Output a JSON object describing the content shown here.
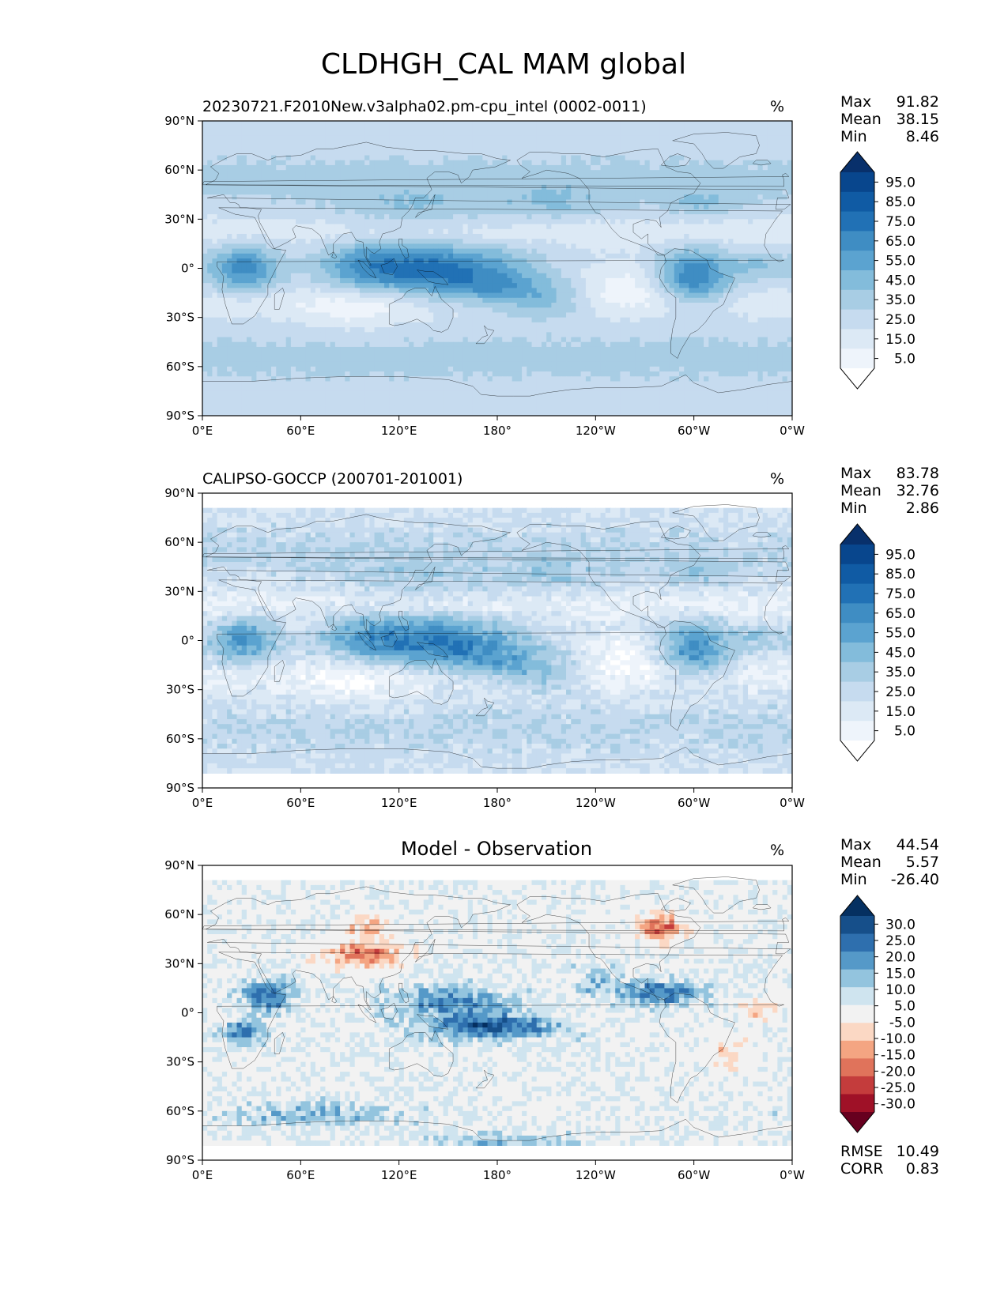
{
  "figure_title": "CLDHGH_CAL MAM global",
  "chart_data": [
    {
      "type": "heatmap",
      "title": "20230721.F2010New.v3alpha02.pm-cpu_intel (0002-0011)",
      "units": "%",
      "x_ticks": [
        "0°E",
        "60°E",
        "120°E",
        "180°",
        "120°W",
        "60°W",
        "0°W"
      ],
      "y_ticks": [
        "90°N",
        "60°N",
        "30°N",
        "0°",
        "30°S",
        "60°S",
        "90°S"
      ],
      "xlim": [
        0,
        360
      ],
      "ylim": [
        -90,
        90
      ],
      "stats": [
        {
          "label": "Max",
          "value": "91.82"
        },
        {
          "label": "Mean",
          "value": "38.15"
        },
        {
          "label": "Min",
          "value": "8.46"
        }
      ],
      "colorbar": {
        "labels": [
          "95.0",
          "85.0",
          "75.0",
          "65.0",
          "55.0",
          "45.0",
          "35.0",
          "25.0",
          "15.0",
          "5.0"
        ],
        "colors": [
          "#08306b",
          "#08468d",
          "#105ba4",
          "#2171b5",
          "#3f8dc3",
          "#5ba3d0",
          "#83bcdb",
          "#a8cde4",
          "#c6dbef",
          "#dce9f5",
          "#eef4fb",
          "#ffffff"
        ],
        "extend": "both"
      }
    },
    {
      "type": "heatmap",
      "title": "CALIPSO-GOCCP (200701-201001)",
      "units": "%",
      "x_ticks": [
        "0°E",
        "60°E",
        "120°E",
        "180°",
        "120°W",
        "60°W",
        "0°W"
      ],
      "y_ticks": [
        "90°N",
        "60°N",
        "30°N",
        "0°",
        "30°S",
        "60°S",
        "90°S"
      ],
      "xlim": [
        0,
        360
      ],
      "ylim": [
        -90,
        90
      ],
      "stats": [
        {
          "label": "Max",
          "value": "83.78"
        },
        {
          "label": "Mean",
          "value": "32.76"
        },
        {
          "label": "Min",
          "value": "2.86"
        }
      ],
      "colorbar": {
        "labels": [
          "95.0",
          "85.0",
          "75.0",
          "65.0",
          "55.0",
          "45.0",
          "35.0",
          "25.0",
          "15.0",
          "5.0"
        ],
        "colors": [
          "#08306b",
          "#08468d",
          "#105ba4",
          "#2171b5",
          "#3f8dc3",
          "#5ba3d0",
          "#83bcdb",
          "#a8cde4",
          "#c6dbef",
          "#dce9f5",
          "#eef4fb",
          "#ffffff"
        ],
        "extend": "both"
      }
    },
    {
      "type": "heatmap",
      "title": "Model - Observation",
      "units": "%",
      "x_ticks": [
        "0°E",
        "60°E",
        "120°E",
        "180°",
        "120°W",
        "60°W",
        "0°W"
      ],
      "y_ticks": [
        "90°N",
        "60°N",
        "30°N",
        "0°",
        "30°S",
        "60°S",
        "90°S"
      ],
      "xlim": [
        0,
        360
      ],
      "ylim": [
        -90,
        90
      ],
      "stats": [
        {
          "label": "Max",
          "value": "44.54"
        },
        {
          "label": "Mean",
          "value": "5.57"
        },
        {
          "label": "Min",
          "value": "-26.40"
        }
      ],
      "bottom_stats": [
        {
          "label": "RMSE",
          "value": "10.49"
        },
        {
          "label": "CORR",
          "value": "0.83"
        }
      ],
      "colorbar": {
        "labels": [
          "30.0",
          "25.0",
          "20.0",
          "15.0",
          "10.0",
          "5.0",
          "-5.0",
          "-10.0",
          "-15.0",
          "-20.0",
          "-25.0",
          "-30.0"
        ],
        "colors": [
          "#053061",
          "#164f8a",
          "#2e6fae",
          "#5599c8",
          "#93c4de",
          "#cfe4ef",
          "#f2f2f2",
          "#fbd8c4",
          "#f4a582",
          "#e0735b",
          "#c43c3c",
          "#9f1127",
          "#67001f"
        ],
        "extend": "both"
      }
    }
  ]
}
